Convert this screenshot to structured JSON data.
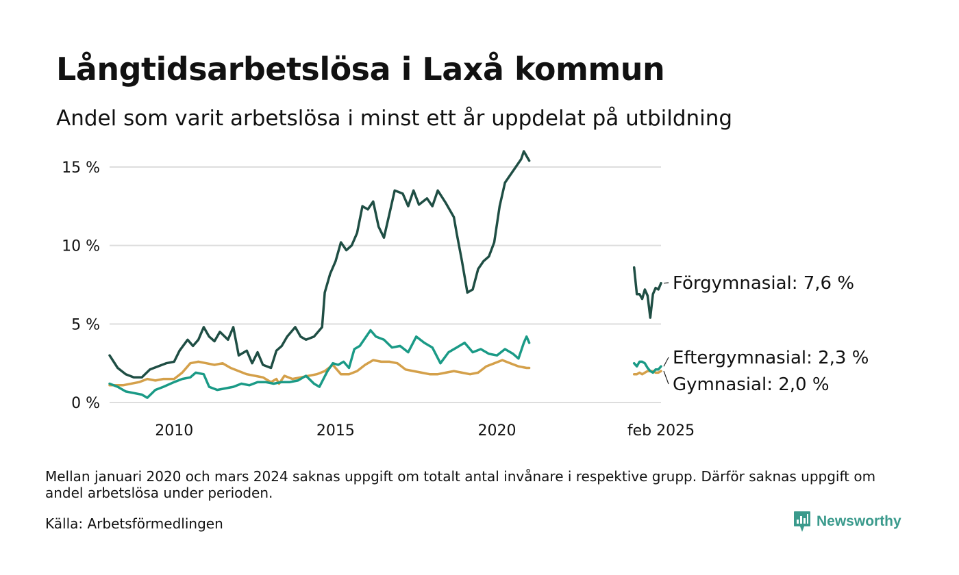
{
  "title": "Långtidsarbetslösa i Laxå kommun",
  "subtitle": "Andel som varit arbetslösa i minst ett år uppdelat på utbildning",
  "footnote": "Mellan januari 2020 och mars 2024 saknas uppgift om totalt antal invånare i respektive grupp. Därför saknas uppgift om andel arbetslösa under perioden.",
  "source": "Källa: Arbetsförmedlingen",
  "brand": "Newsworthy",
  "colors": {
    "brand": "#3a9a8c",
    "grid": "#dddddd",
    "text": "#111111"
  },
  "chart_data": {
    "type": "line",
    "x_axis": {
      "range": [
        "2008-01",
        "2025-02"
      ],
      "ticks": [
        {
          "x": "2010-01",
          "label": "2010"
        },
        {
          "x": "2015-01",
          "label": "2015"
        },
        {
          "x": "2020-01",
          "label": "2020"
        },
        {
          "x": "2025-02",
          "label": "feb 2025"
        }
      ]
    },
    "y_axis": {
      "range": [
        0,
        16
      ],
      "ticks": [
        {
          "y": 0,
          "label": "0 %"
        },
        {
          "y": 5,
          "label": "5 %"
        },
        {
          "y": 10,
          "label": "10 %"
        },
        {
          "y": 15,
          "label": "15 %"
        }
      ],
      "grid": true
    },
    "gap": {
      "from": "2021-01",
      "to": "2024-04"
    },
    "series": [
      {
        "name": "Förgymnasial",
        "label": "Förgymnasial: 7,6 %",
        "color": "#1f4e44",
        "segments": [
          [
            [
              "2008-01",
              3.0
            ],
            [
              "2008-04",
              2.2
            ],
            [
              "2008-07",
              1.8
            ],
            [
              "2008-10",
              1.6
            ],
            [
              "2009-01",
              1.6
            ],
            [
              "2009-04",
              2.1
            ],
            [
              "2009-07",
              2.3
            ],
            [
              "2009-10",
              2.5
            ],
            [
              "2010-01",
              2.6
            ],
            [
              "2010-03",
              3.3
            ],
            [
              "2010-06",
              4.0
            ],
            [
              "2010-08",
              3.6
            ],
            [
              "2010-10",
              4.0
            ],
            [
              "2010-12",
              4.8
            ],
            [
              "2011-02",
              4.2
            ],
            [
              "2011-04",
              3.9
            ],
            [
              "2011-06",
              4.5
            ],
            [
              "2011-09",
              4.0
            ],
            [
              "2011-11",
              4.8
            ],
            [
              "2012-01",
              3.0
            ],
            [
              "2012-04",
              3.3
            ],
            [
              "2012-06",
              2.5
            ],
            [
              "2012-08",
              3.2
            ],
            [
              "2012-10",
              2.4
            ],
            [
              "2013-01",
              2.2
            ],
            [
              "2013-03",
              3.3
            ],
            [
              "2013-05",
              3.6
            ],
            [
              "2013-07",
              4.2
            ],
            [
              "2013-10",
              4.8
            ],
            [
              "2013-12",
              4.2
            ],
            [
              "2014-02",
              4.0
            ],
            [
              "2014-05",
              4.2
            ],
            [
              "2014-08",
              4.8
            ],
            [
              "2014-09",
              7.0
            ],
            [
              "2014-11",
              8.2
            ],
            [
              "2015-01",
              9.0
            ],
            [
              "2015-03",
              10.2
            ],
            [
              "2015-05",
              9.7
            ],
            [
              "2015-07",
              10.0
            ],
            [
              "2015-09",
              10.8
            ],
            [
              "2015-11",
              12.5
            ],
            [
              "2016-01",
              12.3
            ],
            [
              "2016-03",
              12.8
            ],
            [
              "2016-05",
              11.2
            ],
            [
              "2016-07",
              10.5
            ],
            [
              "2016-09",
              12.0
            ],
            [
              "2016-11",
              13.5
            ],
            [
              "2017-02",
              13.3
            ],
            [
              "2017-04",
              12.5
            ],
            [
              "2017-06",
              13.5
            ],
            [
              "2017-08",
              12.6
            ],
            [
              "2017-11",
              13.0
            ],
            [
              "2018-01",
              12.5
            ],
            [
              "2018-03",
              13.5
            ],
            [
              "2018-06",
              12.7
            ],
            [
              "2018-09",
              11.8
            ],
            [
              "2018-10",
              10.8
            ],
            [
              "2018-12",
              9.0
            ],
            [
              "2019-02",
              7.0
            ],
            [
              "2019-04",
              7.2
            ],
            [
              "2019-06",
              8.5
            ],
            [
              "2019-08",
              9.0
            ],
            [
              "2019-10",
              9.3
            ],
            [
              "2019-12",
              10.2
            ],
            [
              "2020-02",
              12.5
            ],
            [
              "2020-04",
              14.0
            ],
            [
              "2020-06",
              14.5
            ],
            [
              "2020-08",
              15.0
            ],
            [
              "2020-10",
              15.5
            ],
            [
              "2020-11",
              16.0
            ],
            [
              "2021-01",
              15.4
            ]
          ],
          [
            [
              "2024-04",
              8.6
            ],
            [
              "2024-05",
              6.9
            ],
            [
              "2024-06",
              6.9
            ],
            [
              "2024-07",
              6.6
            ],
            [
              "2024-08",
              7.2
            ],
            [
              "2024-09",
              6.8
            ],
            [
              "2024-10",
              5.4
            ],
            [
              "2024-11",
              6.9
            ],
            [
              "2024-12",
              7.3
            ],
            [
              "2025-01",
              7.2
            ],
            [
              "2025-02",
              7.6
            ]
          ]
        ]
      },
      {
        "name": "Eftergymnasial",
        "label": "Eftergymnasial: 2,3 %",
        "color": "#1a9a86",
        "segments": [
          [
            [
              "2008-01",
              1.2
            ],
            [
              "2008-04",
              1.0
            ],
            [
              "2008-07",
              0.7
            ],
            [
              "2008-10",
              0.6
            ],
            [
              "2009-01",
              0.5
            ],
            [
              "2009-03",
              0.3
            ],
            [
              "2009-06",
              0.8
            ],
            [
              "2009-09",
              1.0
            ],
            [
              "2010-01",
              1.3
            ],
            [
              "2010-04",
              1.5
            ],
            [
              "2010-07",
              1.6
            ],
            [
              "2010-09",
              1.9
            ],
            [
              "2010-12",
              1.8
            ],
            [
              "2011-02",
              1.0
            ],
            [
              "2011-05",
              0.8
            ],
            [
              "2011-08",
              0.9
            ],
            [
              "2011-11",
              1.0
            ],
            [
              "2012-02",
              1.2
            ],
            [
              "2012-05",
              1.1
            ],
            [
              "2012-08",
              1.3
            ],
            [
              "2012-11",
              1.3
            ],
            [
              "2013-02",
              1.2
            ],
            [
              "2013-05",
              1.3
            ],
            [
              "2013-08",
              1.3
            ],
            [
              "2013-11",
              1.4
            ],
            [
              "2014-02",
              1.7
            ],
            [
              "2014-05",
              1.2
            ],
            [
              "2014-07",
              1.0
            ],
            [
              "2014-10",
              2.0
            ],
            [
              "2014-12",
              2.5
            ],
            [
              "2015-02",
              2.4
            ],
            [
              "2015-04",
              2.6
            ],
            [
              "2015-06",
              2.2
            ],
            [
              "2015-08",
              3.4
            ],
            [
              "2015-10",
              3.6
            ],
            [
              "2015-12",
              4.1
            ],
            [
              "2016-02",
              4.6
            ],
            [
              "2016-04",
              4.2
            ],
            [
              "2016-07",
              4.0
            ],
            [
              "2016-10",
              3.5
            ],
            [
              "2017-01",
              3.6
            ],
            [
              "2017-04",
              3.2
            ],
            [
              "2017-07",
              4.2
            ],
            [
              "2017-10",
              3.8
            ],
            [
              "2018-01",
              3.5
            ],
            [
              "2018-04",
              2.5
            ],
            [
              "2018-07",
              3.2
            ],
            [
              "2018-10",
              3.5
            ],
            [
              "2019-01",
              3.8
            ],
            [
              "2019-04",
              3.2
            ],
            [
              "2019-07",
              3.4
            ],
            [
              "2019-10",
              3.1
            ],
            [
              "2020-01",
              3.0
            ],
            [
              "2020-04",
              3.4
            ],
            [
              "2020-07",
              3.1
            ],
            [
              "2020-09",
              2.8
            ],
            [
              "2020-11",
              3.8
            ],
            [
              "2020-12",
              4.2
            ],
            [
              "2021-01",
              3.8
            ]
          ],
          [
            [
              "2024-04",
              2.5
            ],
            [
              "2024-05",
              2.3
            ],
            [
              "2024-06",
              2.6
            ],
            [
              "2024-07",
              2.6
            ],
            [
              "2024-08",
              2.5
            ],
            [
              "2024-09",
              2.2
            ],
            [
              "2024-10",
              2.0
            ],
            [
              "2024-11",
              1.9
            ],
            [
              "2024-12",
              2.1
            ],
            [
              "2025-01",
              2.1
            ],
            [
              "2025-02",
              2.3
            ]
          ]
        ]
      },
      {
        "name": "Gymnasial",
        "label": "Gymnasial: 2,0 %",
        "color": "#d4a04a",
        "segments": [
          [
            [
              "2008-01",
              1.1
            ],
            [
              "2008-06",
              1.1
            ],
            [
              "2008-12",
              1.3
            ],
            [
              "2009-03",
              1.5
            ],
            [
              "2009-06",
              1.4
            ],
            [
              "2009-09",
              1.5
            ],
            [
              "2010-01",
              1.5
            ],
            [
              "2010-04",
              1.9
            ],
            [
              "2010-07",
              2.5
            ],
            [
              "2010-10",
              2.6
            ],
            [
              "2011-01",
              2.5
            ],
            [
              "2011-04",
              2.4
            ],
            [
              "2011-07",
              2.5
            ],
            [
              "2011-10",
              2.2
            ],
            [
              "2012-01",
              2.0
            ],
            [
              "2012-04",
              1.8
            ],
            [
              "2012-07",
              1.7
            ],
            [
              "2012-10",
              1.6
            ],
            [
              "2013-01",
              1.3
            ],
            [
              "2013-03",
              1.5
            ],
            [
              "2013-04",
              1.2
            ],
            [
              "2013-06",
              1.7
            ],
            [
              "2013-09",
              1.5
            ],
            [
              "2013-12",
              1.6
            ],
            [
              "2014-03",
              1.7
            ],
            [
              "2014-06",
              1.8
            ],
            [
              "2014-09",
              2.0
            ],
            [
              "2014-12",
              2.4
            ],
            [
              "2015-03",
              1.8
            ],
            [
              "2015-06",
              1.8
            ],
            [
              "2015-09",
              2.0
            ],
            [
              "2015-12",
              2.4
            ],
            [
              "2016-03",
              2.7
            ],
            [
              "2016-06",
              2.6
            ],
            [
              "2016-09",
              2.6
            ],
            [
              "2016-12",
              2.5
            ],
            [
              "2017-03",
              2.1
            ],
            [
              "2017-06",
              2.0
            ],
            [
              "2017-09",
              1.9
            ],
            [
              "2017-12",
              1.8
            ],
            [
              "2018-03",
              1.8
            ],
            [
              "2018-06",
              1.9
            ],
            [
              "2018-09",
              2.0
            ],
            [
              "2018-12",
              1.9
            ],
            [
              "2019-03",
              1.8
            ],
            [
              "2019-06",
              1.9
            ],
            [
              "2019-09",
              2.3
            ],
            [
              "2019-12",
              2.5
            ],
            [
              "2020-03",
              2.7
            ],
            [
              "2020-06",
              2.5
            ],
            [
              "2020-09",
              2.3
            ],
            [
              "2020-12",
              2.2
            ],
            [
              "2021-01",
              2.2
            ]
          ],
          [
            [
              "2024-04",
              1.8
            ],
            [
              "2024-05",
              1.8
            ],
            [
              "2024-06",
              1.9
            ],
            [
              "2024-07",
              1.8
            ],
            [
              "2024-08",
              1.9
            ],
            [
              "2024-09",
              2.0
            ],
            [
              "2024-10",
              2.0
            ],
            [
              "2024-11",
              2.0
            ],
            [
              "2024-12",
              1.9
            ],
            [
              "2025-01",
              1.9
            ],
            [
              "2025-02",
              2.0
            ]
          ]
        ]
      }
    ]
  }
}
